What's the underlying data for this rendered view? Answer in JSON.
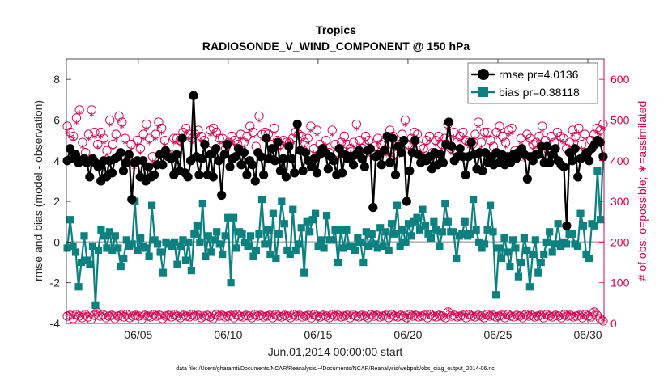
{
  "chart_data": {
    "type": "line",
    "title": "Tropics",
    "subtitle": "RADIOSONDE_V_WIND_COMPONENT @ 150 hPa",
    "xlabel": "Jun.01,2014 00:00:00 start",
    "ylabel": "rmse and bias (model - observation)",
    "y2label": "# of obs: o=possible; ∗=assimilated",
    "note": "data file: /Users/gharamti/Documents/NCAR/Reanalysis/~/Documents/NCAR/Reanalysis/webpub/obs_diag_output_2014-06.nc",
    "xlim": [
      1,
      30.9
    ],
    "ylim": [
      -4,
      9
    ],
    "y2lim": [
      0,
      650
    ],
    "xticks": [
      5,
      10,
      15,
      20,
      25,
      30
    ],
    "xtick_labels": [
      "06/05",
      "06/10",
      "06/15",
      "06/20",
      "06/25",
      "06/30"
    ],
    "yticks": [
      -4,
      -2,
      0,
      2,
      4,
      6,
      8
    ],
    "y2ticks": [
      0,
      100,
      200,
      300,
      400,
      500,
      600
    ],
    "legend_position": "top-right",
    "colors": {
      "rmse": "#000000",
      "bias": "#0d8080",
      "obs": "#d6004e",
      "zero": "#b3b3b3"
    },
    "series": [
      {
        "name": "rmse",
        "legend": "rmse pr=4.0136",
        "values": [
          4.0,
          4.6,
          4.1,
          4.3,
          3.9,
          4.0,
          4.1,
          3.9,
          3.2,
          4.1,
          3.9,
          3.7,
          3.0,
          4.0,
          3.2,
          4.0,
          3.4,
          4.1,
          4.2,
          4.4,
          3.5,
          3.9,
          4.3,
          2.1,
          3.9,
          4.0,
          3.2,
          4.0,
          3.0,
          3.7,
          3.2,
          3.3,
          3.8,
          4.3,
          3.8,
          4.5,
          4.2,
          4.1,
          3.3,
          4.3,
          3.5,
          5.1,
          3.4,
          3.2,
          4.0,
          7.2,
          4.2,
          3.3,
          4.1,
          4.8,
          3.3,
          4.3,
          3.2,
          4.6,
          4.0,
          2.3,
          4.3,
          4.8,
          3.7,
          4.1,
          4.2,
          4.6,
          3.8,
          4.4,
          3.3,
          4.0,
          3.8,
          3.0,
          4.4,
          4.2,
          3.3,
          5.1,
          4.1,
          4.6,
          4.0,
          4.9,
          3.5,
          4.1,
          3.2,
          4.7,
          4.1,
          3.4,
          5.8,
          4.5,
          3.5,
          4.4,
          4.0,
          3.7,
          4.1,
          3.4,
          4.3,
          4.6,
          4.4,
          3.6,
          4.2,
          4.0,
          3.3,
          4.6,
          3.4,
          4.3,
          4.1,
          4.2,
          3.8,
          4.3,
          4.5,
          4.1,
          3.7,
          4.5,
          4.6,
          1.7,
          4.2,
          4.3,
          3.8,
          4.5,
          5.2,
          3.9,
          5.1,
          3.3,
          4.7,
          4.4,
          5.0,
          2.0,
          3.5,
          4.4,
          5.0,
          4.3,
          3.9,
          4.1,
          4.0,
          4.2,
          3.6,
          4.4,
          3.8,
          4.3,
          3.9,
          4.8,
          5.9,
          4.7,
          4.0,
          4.2,
          4.6,
          4.2,
          3.3,
          4.2,
          4.9,
          4.3,
          3.6,
          4.4,
          3.5,
          4.4,
          3.9,
          4.2,
          3.8,
          4.4,
          3.9,
          4.3,
          3.8,
          4.2,
          3.9,
          4.3,
          4.1,
          4.4,
          4.6,
          4.3,
          3.1,
          4.2,
          4.0,
          4.3,
          4.3,
          4.7,
          3.9,
          4.7,
          3.9,
          4.3,
          4.6,
          4.0,
          3.8,
          3.7,
          0.8,
          4.4,
          4.0,
          4.6,
          3.2,
          4.1,
          4.2,
          4.4,
          4.0,
          4.6,
          4.8,
          5.0,
          4.9,
          4.2
        ]
      },
      {
        "name": "bias",
        "legend": "bias pr=0.38118",
        "values": [
          -0.3,
          1.1,
          -0.2,
          -0.5,
          -2.2,
          -1.0,
          0.3,
          -0.9,
          -1.1,
          -0.2,
          -3.1,
          -0.4,
          0.6,
          0.3,
          -0.3,
          0.5,
          -0.4,
          0.3,
          -0.3,
          -1.2,
          -0.8,
          0.1,
          -0.2,
          -0.1,
          2.0,
          -0.4,
          0.2,
          -0.2,
          -0.3,
          -0.7,
          1.8,
          0.1,
          -0.1,
          -0.5,
          -1.5,
          0.0,
          -0.1,
          -0.2,
          0.0,
          -1.1,
          -0.2,
          0.1,
          -0.9,
          0.0,
          -1.4,
          0.4,
          0.8,
          0.0,
          1.9,
          -0.7,
          0.3,
          -0.5,
          0.1,
          0.5,
          -0.1,
          -0.6,
          0.3,
          1.2,
          -2.0,
          1.2,
          -0.3,
          0.5,
          0.4,
          0.0,
          -0.2,
          0.3,
          -0.7,
          -0.4,
          0.4,
          2.1,
          -0.1,
          0.6,
          -0.6,
          1.4,
          -0.8,
          0.4,
          2.0,
          0.9,
          -0.4,
          -0.6,
          1.6,
          -0.4,
          -0.1,
          0.7,
          -1.5,
          1.0,
          0.5,
          1.1,
          1.4,
          -0.2,
          0.1,
          -0.3,
          1.3,
          0.1,
          0.1,
          0.6,
          -1.0,
          0.6,
          -0.3,
          0.6,
          -0.2,
          -0.2,
          -0.4,
          0.2,
          0.0,
          -1.0,
          0.5,
          -0.2,
          0.4,
          -0.1,
          -0.3,
          0.7,
          -0.2,
          0.5,
          -0.4,
          0.9,
          0.4,
          1.8,
          -0.2,
          0.6,
          0.0,
          0.9,
          0.3,
          1.0,
          1.2,
          0.6,
          1.6,
          0.8,
          0.4,
          0.2,
          1.0,
          0.6,
          -0.2,
          0.5,
          1.9,
          1.0,
          0.5,
          0.5,
          -0.8,
          0.3,
          0.4,
          1.0,
          0.3,
          0.4,
          2.1,
          0.6,
          0.0,
          -0.3,
          -0.1,
          0.6,
          1.8,
          0.5,
          -2.6,
          -0.3,
          -0.8,
          0.2,
          -0.5,
          -1.2,
          0.1,
          -0.3,
          -1.7,
          -1.0,
          0.2,
          -0.4,
          -2.2,
          -0.6,
          0.1,
          -1.5,
          -1.0,
          -0.6,
          0.0,
          0.5,
          -0.5,
          -0.1,
          0.9,
          -0.2,
          0.0,
          -0.1,
          0.4,
          0.4,
          -0.1,
          -0.2,
          1.4,
          0.8,
          -0.6,
          -0.8,
          0.9,
          0.8,
          3.5,
          1.1,
          4.2
        ]
      },
      {
        "name": "obs_possible",
        "axis": "right",
        "marker": "o",
        "values": [
          485,
          470,
          460,
          505,
          525,
          445,
          420,
          465,
          525,
          470,
          440,
          470,
          455,
          425,
          500,
          440,
          465,
          510,
          495,
          455,
          410,
          440,
          395,
          450,
          430,
          465,
          490,
          455,
          410,
          465,
          495,
          480,
          450,
          415,
          415,
          455,
          455,
          450,
          470,
          480,
          465,
          455,
          465,
          475,
          460,
          450,
          425,
          475,
          480,
          470,
          455,
          455,
          430,
          445,
          460,
          450,
          440,
          465,
          445,
          460,
          485,
          470,
          435,
          510,
          465,
          470,
          465,
          440,
          480,
          450,
          440,
          450,
          445,
          445,
          455,
          470,
          465,
          460,
          445,
          455,
          485,
          430,
          475,
          440,
          430,
          450,
          420,
          475,
          440,
          420,
          445,
          460,
          440,
          430,
          445,
          490,
          450,
          430,
          460,
          450,
          420,
          435,
          455,
          440,
          445,
          425,
          475,
          460,
          415,
          440,
          465,
          500,
          440,
          455,
          470,
          465,
          435,
          430,
          450,
          460,
          420,
          450,
          460,
          440,
          455,
          490,
          430,
          470,
          445,
          460,
          470,
          450,
          445,
          440,
          465,
          495,
          445,
          470,
          470,
          450,
          435,
          470,
          485,
          460,
          445,
          475,
          480,
          425,
          420,
          455,
          415,
          465,
          455,
          440,
          445,
          460,
          485,
          450,
          425,
          460,
          445,
          470,
          460,
          455,
          430,
          445,
          475,
          460,
          480,
          440,
          465,
          420,
          450,
          465,
          480,
          475,
          490
        ]
      },
      {
        "name": "obs_assimilated",
        "axis": "right",
        "marker": "*",
        "values": [
          465,
          455,
          450,
          490,
          515,
          430,
          405,
          450,
          510,
          455,
          430,
          455,
          440,
          410,
          485,
          425,
          450,
          495,
          480,
          440,
          395,
          425,
          380,
          435,
          415,
          450,
          475,
          440,
          395,
          450,
          480,
          465,
          435,
          400,
          400,
          440,
          440,
          435,
          455,
          465,
          450,
          440,
          450,
          460,
          445,
          435,
          410,
          460,
          465,
          455,
          440,
          440,
          415,
          430,
          445,
          435,
          425,
          450,
          430,
          445,
          470,
          455,
          420,
          495,
          450,
          455,
          450,
          425,
          465,
          435,
          425,
          435,
          430,
          430,
          440,
          455,
          450,
          445,
          430,
          440,
          470,
          415,
          460,
          425,
          415,
          435,
          405,
          460,
          425,
          405,
          430,
          445,
          425,
          415,
          430,
          475,
          435,
          415,
          445,
          435,
          405,
          420,
          440,
          425,
          430,
          410,
          460,
          445,
          400,
          425,
          450,
          485,
          425,
          440,
          455,
          450,
          420,
          415,
          435,
          445,
          405,
          435,
          445,
          425,
          440,
          475,
          415,
          455,
          430,
          445,
          455,
          435,
          430,
          425,
          450,
          480,
          430,
          455,
          455,
          435,
          420,
          455,
          470,
          445,
          430,
          460,
          465,
          410,
          405,
          440,
          400,
          450,
          440,
          425,
          430,
          445,
          470,
          435,
          410,
          445,
          430,
          455,
          445,
          440,
          415,
          430,
          460,
          445,
          465,
          425,
          450,
          405,
          435,
          450,
          465,
          460,
          475
        ]
      },
      {
        "name": "obs_bottom_possible",
        "axis": "right",
        "marker": "o",
        "values": [
          18,
          20,
          12,
          22,
          18,
          14,
          22,
          16,
          10,
          20,
          28,
          18,
          22,
          14,
          18,
          20,
          12,
          18,
          20,
          16,
          22,
          14,
          18,
          20,
          18,
          10,
          20,
          18,
          16,
          22,
          18,
          20,
          12,
          18,
          20,
          16,
          22,
          18,
          14,
          20,
          18,
          16,
          22,
          18,
          20,
          14,
          18,
          20,
          16,
          12,
          22,
          18,
          20,
          16,
          18,
          20,
          14,
          22,
          18,
          16,
          20,
          18,
          14,
          22,
          18,
          20,
          16,
          18,
          20,
          14,
          22,
          18,
          16,
          20,
          18,
          14,
          22,
          18,
          20,
          16,
          18,
          20,
          14,
          22,
          18,
          16,
          20,
          18,
          14,
          22,
          18,
          20,
          16,
          18,
          20,
          14,
          22,
          18,
          16,
          20,
          18,
          14,
          22,
          18,
          20,
          16,
          18,
          20,
          14,
          22,
          18,
          16,
          20,
          18,
          14,
          22,
          18,
          20,
          16,
          18,
          20,
          14,
          22,
          18,
          16,
          20,
          18,
          14,
          28,
          18,
          20,
          16,
          18,
          20,
          14,
          22,
          18,
          16,
          20,
          18,
          14,
          22,
          18,
          20,
          16,
          18,
          20,
          14,
          22,
          18,
          16,
          20,
          18,
          14,
          22,
          18,
          20,
          16,
          18,
          20,
          14,
          22,
          18,
          16,
          20,
          18,
          14,
          22,
          18,
          20,
          16,
          18,
          20,
          14,
          22,
          18,
          16,
          28,
          20,
          12,
          6
        ]
      }
    ]
  }
}
